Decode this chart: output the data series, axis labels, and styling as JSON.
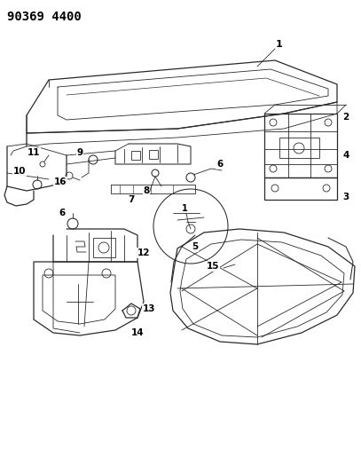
{
  "title": "90369 4400",
  "background_color": "#ffffff",
  "line_color": "#2a2a2a",
  "label_color": "#000000",
  "title_fontsize": 10,
  "label_fontsize": 7.5,
  "figsize": [
    4.07,
    5.33
  ],
  "dpi": 100
}
